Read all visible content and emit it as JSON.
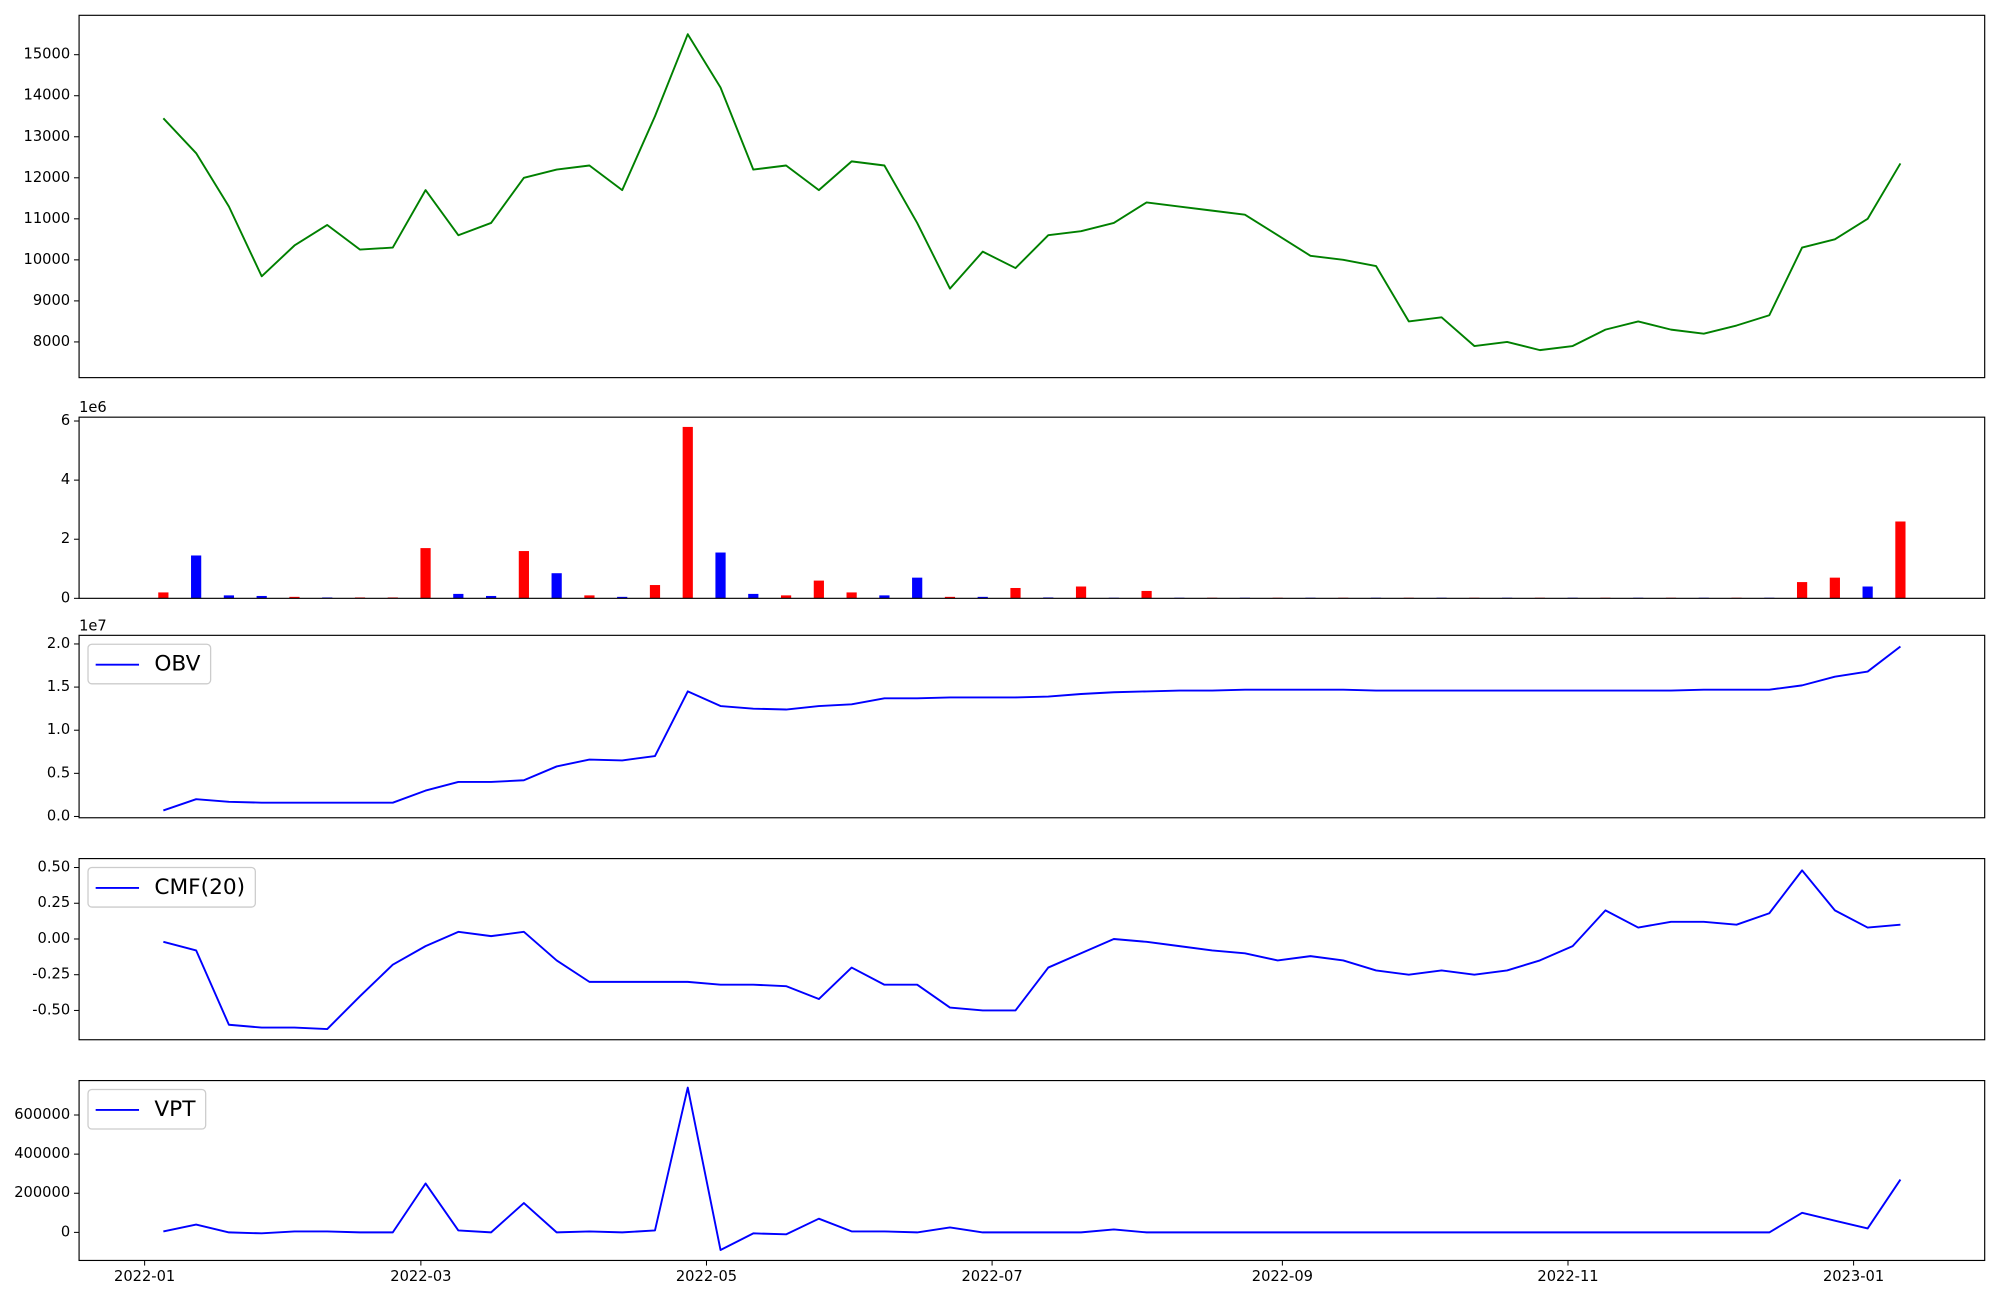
{
  "chart_data": [
    {
      "type": "line",
      "xlim": [
        -14,
        393
      ],
      "ylim": [
        7130,
        15960
      ],
      "yticks": [
        8000,
        9000,
        10000,
        11000,
        12000,
        13000,
        14000,
        15000
      ],
      "x": [
        4,
        11,
        18,
        25,
        32,
        39,
        46,
        53,
        60,
        67,
        74,
        81,
        88,
        95,
        102,
        109,
        116,
        123,
        130,
        137,
        144,
        151,
        158,
        165,
        172,
        179,
        186,
        193,
        200,
        207,
        214,
        221,
        228,
        235,
        242,
        249,
        256,
        263,
        270,
        277,
        284,
        291,
        298,
        305,
        312,
        319,
        326,
        333,
        340,
        347,
        354,
        361,
        368,
        375
      ],
      "series": [
        {
          "color": "#008000",
          "values": [
            13450,
            12600,
            11300,
            9600,
            10350,
            10850,
            10250,
            10300,
            11700,
            10600,
            10900,
            12000,
            12200,
            12300,
            11700,
            13500,
            15500,
            14200,
            12200,
            12300,
            11700,
            12400,
            12300,
            10900,
            9300,
            10200,
            9800,
            10600,
            10700,
            10900,
            11400,
            11300,
            11200,
            11100,
            10600,
            10100,
            10000,
            9850,
            8500,
            8600,
            7900,
            8000,
            7800,
            7900,
            8300,
            8500,
            8300,
            8200,
            8400,
            8650,
            10300,
            10500,
            11000,
            12350
          ]
        }
      ]
    },
    {
      "type": "bar",
      "xlim": [
        -14,
        393
      ],
      "ylim": [
        0,
        6.13
      ],
      "yticks": [
        0,
        2,
        4,
        6
      ],
      "offset_text": "1e6",
      "x": [
        4,
        11,
        18,
        25,
        32,
        39,
        46,
        53,
        60,
        67,
        74,
        81,
        88,
        95,
        102,
        109,
        116,
        123,
        130,
        137,
        144,
        151,
        158,
        165,
        172,
        179,
        186,
        193,
        200,
        207,
        214,
        221,
        228,
        235,
        242,
        249,
        256,
        263,
        270,
        277,
        284,
        291,
        298,
        305,
        312,
        319,
        326,
        333,
        340,
        347,
        354,
        361,
        368,
        375
      ],
      "values": [
        0.2,
        1.45,
        0.1,
        0.08,
        0.05,
        0.03,
        0.03,
        0.03,
        1.7,
        0.15,
        0.08,
        1.6,
        0.85,
        0.1,
        0.05,
        0.45,
        5.8,
        1.55,
        0.15,
        0.1,
        0.6,
        0.2,
        0.1,
        0.7,
        0.05,
        0.05,
        0.35,
        0.03,
        0.4,
        0.02,
        0.25,
        0.02,
        0.02,
        0.02,
        0.02,
        0.02,
        0.02,
        0.02,
        0.02,
        0.02,
        0.02,
        0.02,
        0.02,
        0.02,
        0.02,
        0.02,
        0.02,
        0.02,
        0.02,
        0.02,
        0.55,
        0.7,
        0.4,
        2.6
      ],
      "colors": [
        "#ff0000",
        "#0000ff",
        "#0000ff",
        "#0000ff",
        "#ff0000",
        "#0000ff",
        "#ff0000",
        "#ff0000",
        "#ff0000",
        "#0000ff",
        "#0000ff",
        "#ff0000",
        "#0000ff",
        "#ff0000",
        "#0000ff",
        "#ff0000",
        "#ff0000",
        "#0000ff",
        "#0000ff",
        "#ff0000",
        "#ff0000",
        "#ff0000",
        "#0000ff",
        "#0000ff",
        "#ff0000",
        "#0000ff",
        "#ff0000",
        "#0000ff",
        "#ff0000",
        "#0000ff",
        "#ff0000",
        "#0000ff",
        "#ff0000",
        "#0000ff",
        "#ff0000",
        "#0000ff",
        "#ff0000",
        "#0000ff",
        "#ff0000",
        "#0000ff",
        "#ff0000",
        "#0000ff",
        "#ff0000",
        "#0000ff",
        "#ff0000",
        "#0000ff",
        "#ff0000",
        "#0000ff",
        "#ff0000",
        "#0000ff",
        "#ff0000",
        "#ff0000",
        "#0000ff",
        "#ff0000"
      ]
    },
    {
      "type": "line",
      "xlim": [
        -14,
        393
      ],
      "ylim": [
        -0.015,
        2.1
      ],
      "offset_text": "1e7",
      "yticks": [
        {
          "value": 0,
          "label": "0.0"
        },
        0.5,
        {
          "value": 1,
          "label": "1.0"
        },
        1.5,
        {
          "value": 2,
          "label": "2.0"
        }
      ],
      "x": [
        4,
        11,
        18,
        25,
        32,
        39,
        46,
        53,
        60,
        67,
        74,
        81,
        88,
        95,
        102,
        109,
        116,
        123,
        130,
        137,
        144,
        151,
        158,
        165,
        172,
        179,
        186,
        193,
        200,
        207,
        214,
        221,
        228,
        235,
        242,
        249,
        256,
        263,
        270,
        277,
        284,
        291,
        298,
        305,
        312,
        319,
        326,
        333,
        340,
        347,
        354,
        361,
        368,
        375
      ],
      "series": [
        {
          "name": "OBV",
          "color": "#0000ff",
          "values": [
            0.07,
            0.2,
            0.17,
            0.16,
            0.16,
            0.16,
            0.16,
            0.16,
            0.3,
            0.4,
            0.4,
            0.42,
            0.58,
            0.66,
            0.65,
            0.7,
            1.45,
            1.28,
            1.25,
            1.24,
            1.28,
            1.3,
            1.37,
            1.37,
            1.38,
            1.38,
            1.38,
            1.39,
            1.42,
            1.44,
            1.45,
            1.46,
            1.46,
            1.47,
            1.47,
            1.47,
            1.47,
            1.46,
            1.46,
            1.46,
            1.46,
            1.46,
            1.46,
            1.46,
            1.46,
            1.46,
            1.46,
            1.47,
            1.47,
            1.47,
            1.52,
            1.62,
            1.68,
            1.97
          ]
        }
      ]
    },
    {
      "type": "line",
      "xlim": [
        -14,
        393
      ],
      "ylim": [
        -0.705,
        0.5625
      ],
      "yticks": [
        {
          "value": -0.5,
          "label": "-0.50"
        },
        -0.25,
        {
          "value": 0,
          "label": "0.00"
        },
        0.25,
        {
          "value": 0.5,
          "label": "0.50"
        }
      ],
      "x": [
        4,
        11,
        18,
        25,
        32,
        39,
        46,
        53,
        60,
        67,
        74,
        81,
        88,
        95,
        102,
        109,
        116,
        123,
        130,
        137,
        144,
        151,
        158,
        165,
        172,
        179,
        186,
        193,
        200,
        207,
        214,
        221,
        228,
        235,
        242,
        249,
        256,
        263,
        270,
        277,
        284,
        291,
        298,
        305,
        312,
        319,
        326,
        333,
        340,
        347,
        354,
        361,
        368,
        375
      ],
      "series": [
        {
          "name": "CMF(20)",
          "color": "#0000ff",
          "values": [
            -0.02,
            -0.08,
            -0.6,
            -0.62,
            -0.62,
            -0.63,
            -0.4,
            -0.18,
            -0.05,
            0.05,
            0.02,
            0.05,
            -0.15,
            -0.3,
            -0.3,
            -0.3,
            -0.3,
            -0.32,
            -0.32,
            -0.33,
            -0.42,
            -0.2,
            -0.32,
            -0.32,
            -0.48,
            -0.5,
            -0.5,
            -0.2,
            -0.1,
            0.0,
            -0.02,
            -0.05,
            -0.08,
            -0.1,
            -0.15,
            -0.12,
            -0.15,
            -0.22,
            -0.25,
            -0.22,
            -0.25,
            -0.22,
            -0.15,
            -0.05,
            0.2,
            0.08,
            0.12,
            0.12,
            0.1,
            0.18,
            0.48,
            0.2,
            0.08,
            0.1
          ]
        }
      ]
    },
    {
      "type": "line",
      "xlim": [
        -14,
        393
      ],
      "ylim": [
        -143500,
        776000
      ],
      "yticks": [
        0,
        200000,
        400000,
        600000
      ],
      "xticks": [
        {
          "value": 0,
          "label": "2022-01"
        },
        {
          "value": 59,
          "label": "2022-03"
        },
        {
          "value": 120,
          "label": "2022-05"
        },
        {
          "value": 181,
          "label": "2022-07"
        },
        {
          "value": 243,
          "label": "2022-09"
        },
        {
          "value": 304,
          "label": "2022-11"
        },
        {
          "value": 365,
          "label": "2023-01"
        }
      ],
      "x": [
        4,
        11,
        18,
        25,
        32,
        39,
        46,
        53,
        60,
        67,
        74,
        81,
        88,
        95,
        102,
        109,
        116,
        123,
        130,
        137,
        144,
        151,
        158,
        165,
        172,
        179,
        186,
        193,
        200,
        207,
        214,
        221,
        228,
        235,
        242,
        249,
        256,
        263,
        270,
        277,
        284,
        291,
        298,
        305,
        312,
        319,
        326,
        333,
        340,
        347,
        354,
        361,
        368,
        375
      ],
      "series": [
        {
          "name": "VPT",
          "color": "#0000ff",
          "values": [
            5000,
            40000,
            0,
            -5000,
            5000,
            5000,
            0,
            0,
            250000,
            10000,
            0,
            150000,
            0,
            5000,
            0,
            10000,
            740000,
            -90000,
            -5000,
            -10000,
            70000,
            5000,
            5000,
            0,
            25000,
            0,
            0,
            0,
            0,
            15000,
            0,
            0,
            0,
            0,
            0,
            0,
            0,
            0,
            0,
            0,
            0,
            0,
            0,
            0,
            0,
            0,
            0,
            0,
            0,
            0,
            100000,
            60000,
            20000,
            270000
          ]
        }
      ]
    }
  ]
}
